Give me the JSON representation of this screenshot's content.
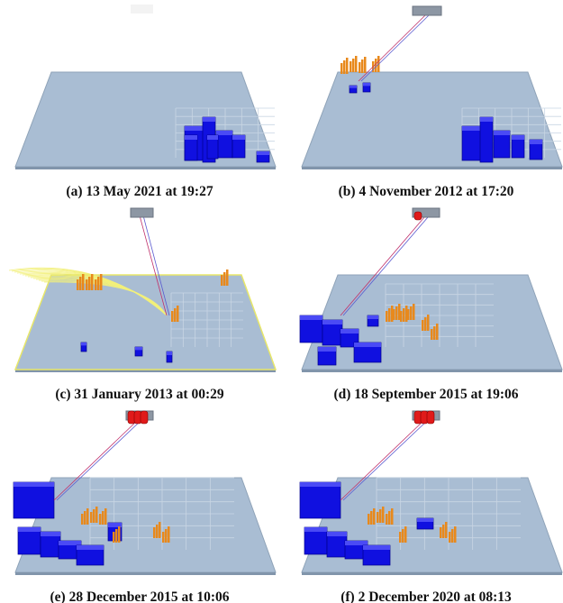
{
  "panels": [
    {
      "caption": "(a) 13 May 2021 at 19:27"
    },
    {
      "caption": "(b) 4 November 2012 at 17:20"
    },
    {
      "caption": "(c) 31 January 2013 at 00:29"
    },
    {
      "caption": "(d) 18 September 2015 at 19:06"
    },
    {
      "caption": "(e) 28 December 2015 at 10:06"
    },
    {
      "caption": "(f) 2 December 2020 at 08:13"
    }
  ]
}
